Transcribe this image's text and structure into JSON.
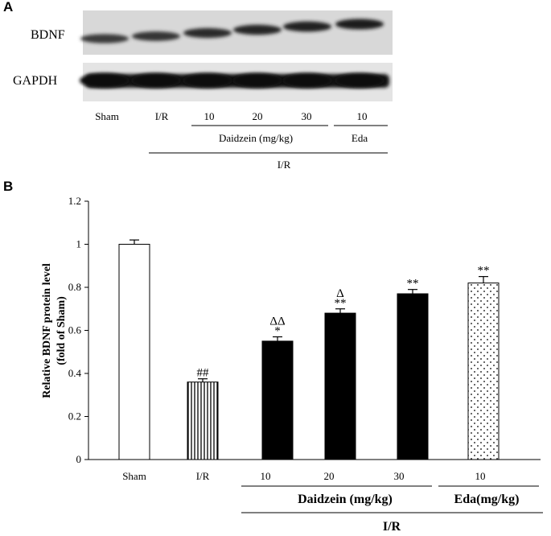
{
  "panels": {
    "a": "A",
    "b": "B"
  },
  "blot": {
    "rows": [
      {
        "label": "BDNF",
        "band_intensity": [
          0.55,
          0.62,
          0.7,
          0.75,
          0.8,
          0.85
        ]
      },
      {
        "label": "GAPDH",
        "band_intensity": [
          0.95,
          0.95,
          0.95,
          0.95,
          0.95,
          0.95
        ]
      }
    ],
    "lanes": [
      "Sham",
      "I/R",
      "10",
      "20",
      "30",
      "10"
    ],
    "group_daidzein": "Daidzein (mg/kg)",
    "group_eda": "Eda",
    "group_ir": "I/R"
  },
  "chart_data": {
    "type": "bar",
    "ylabel_line1": "Relative BDNF protein level",
    "ylabel_line2": "(fold of Sham)",
    "ylim": [
      0,
      1.2
    ],
    "yticks": [
      "0",
      "0.2",
      "0.4",
      "0.6",
      "0.8",
      "1",
      "1.2"
    ],
    "categories": [
      "Sham",
      "I/R",
      "10",
      "20",
      "30",
      "10"
    ],
    "values": [
      1.0,
      0.36,
      0.55,
      0.68,
      0.77,
      0.82
    ],
    "errors": [
      0.02,
      0.015,
      0.02,
      0.02,
      0.02,
      0.03
    ],
    "fills": [
      "open",
      "vertical-lines",
      "solid",
      "solid",
      "solid",
      "dots"
    ],
    "annotations": [
      {
        "bar": 1,
        "lines": [
          "##"
        ]
      },
      {
        "bar": 2,
        "lines": [
          "ΔΔ",
          "*"
        ]
      },
      {
        "bar": 3,
        "lines": [
          "Δ",
          "**"
        ]
      },
      {
        "bar": 4,
        "lines": [
          "**"
        ]
      },
      {
        "bar": 5,
        "lines": [
          "**"
        ]
      }
    ],
    "group_daidzein": "Daidzein (mg/kg)",
    "group_eda": "Eda(mg/kg)",
    "group_ir": "I/R"
  }
}
